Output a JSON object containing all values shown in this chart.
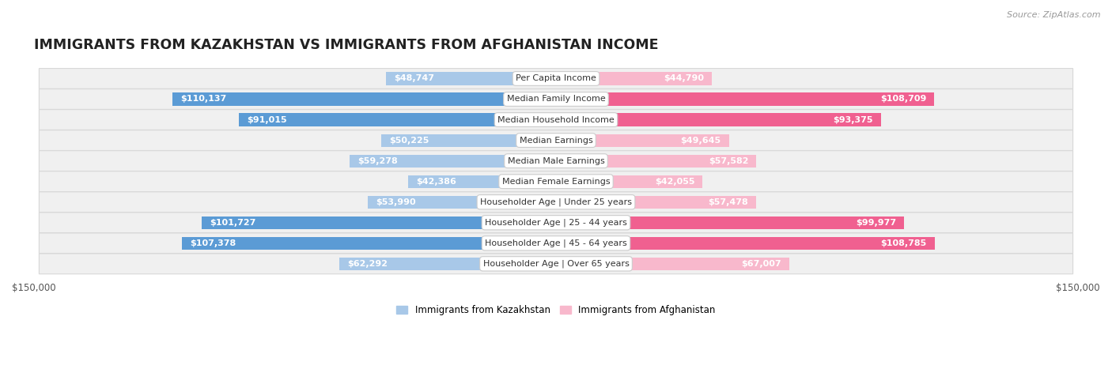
{
  "title": "IMMIGRANTS FROM KAZAKHSTAN VS IMMIGRANTS FROM AFGHANISTAN INCOME",
  "source": "Source: ZipAtlas.com",
  "categories": [
    "Per Capita Income",
    "Median Family Income",
    "Median Household Income",
    "Median Earnings",
    "Median Male Earnings",
    "Median Female Earnings",
    "Householder Age | Under 25 years",
    "Householder Age | 25 - 44 years",
    "Householder Age | 45 - 64 years",
    "Householder Age | Over 65 years"
  ],
  "kazakhstan_values": [
    48747,
    110137,
    91015,
    50225,
    59278,
    42386,
    53990,
    101727,
    107378,
    62292
  ],
  "afghanistan_values": [
    44790,
    108709,
    93375,
    49645,
    57582,
    42055,
    57478,
    99977,
    108785,
    67007
  ],
  "kazakhstan_labels": [
    "$48,747",
    "$110,137",
    "$91,015",
    "$50,225",
    "$59,278",
    "$42,386",
    "$53,990",
    "$101,727",
    "$107,378",
    "$62,292"
  ],
  "afghanistan_labels": [
    "$44,790",
    "$108,709",
    "$93,375",
    "$49,645",
    "$57,582",
    "$42,055",
    "$57,478",
    "$99,977",
    "$108,785",
    "$67,007"
  ],
  "kazakhstan_color_light": "#a8c8e8",
  "kazakhstan_color_dark": "#5b9bd5",
  "afghanistan_color_light": "#f8b8cc",
  "afghanistan_color_dark": "#f06090",
  "max_value": 150000,
  "bar_height": 0.62,
  "row_bg_color": "#f0f0f0",
  "row_border_color": "#d8d8d8",
  "label_fontsize": 8.0,
  "title_fontsize": 12.5,
  "source_fontsize": 8.0,
  "legend_fontsize": 8.5,
  "dark_threshold": 70000
}
